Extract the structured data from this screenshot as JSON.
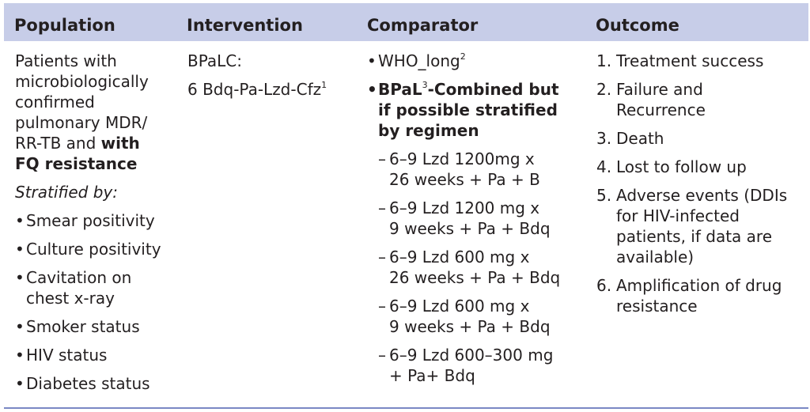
{
  "headers": {
    "population": "Population",
    "intervention": "Intervention",
    "comparator": "Comparator",
    "outcome": "Outcome"
  },
  "population": {
    "line1": "Patients with",
    "line2": "microbiologically",
    "line3": "confirmed",
    "line4": "pulmonary MDR/",
    "line5_plain": "RR-TB and ",
    "line5_bold": "with",
    "line6_bold": "FQ resistance",
    "stratified_label": "Stratified by:",
    "items": [
      "Smear positivity",
      "Culture positivity",
      "Cavitation on",
      "chest x-ray",
      "Smoker status",
      "HIV status",
      "Diabetes status"
    ]
  },
  "intervention": {
    "name": "BPaLC:",
    "regimen": "6 Bdq-Pa-Lzd-Cfz",
    "footnote": "1"
  },
  "comparator": {
    "who_label": "WHO_long",
    "who_footnote": "2",
    "bpal_bold": "BPaL",
    "bpal_footnote": "3",
    "bpal_rest1": "-Combined but",
    "bpal_rest2": "if possible stratified",
    "bpal_rest3": "by regimen",
    "dash_symbol": "–",
    "regimens": [
      {
        "line1": "6–9 Lzd 1200mg x",
        "line2": "26 weeks + Pa + B"
      },
      {
        "line1": "6–9 Lzd 1200 mg x",
        "line2": "9 weeks + Pa + Bdq"
      },
      {
        "line1": "6–9 Lzd 600 mg x",
        "line2": "26 weeks + Pa + Bdq"
      },
      {
        "line1": "6–9 Lzd 600 mg x",
        "line2": "9 weeks + Pa + Bdq"
      },
      {
        "line1": "6–9 Lzd 600–300 mg",
        "line2": "+ Pa+ Bdq"
      }
    ]
  },
  "outcome": {
    "items": [
      {
        "num": "1.",
        "lines": [
          "Treatment success"
        ]
      },
      {
        "num": "2.",
        "lines": [
          "Failure and",
          "Recurrence"
        ]
      },
      {
        "num": "3.",
        "lines": [
          "Death"
        ]
      },
      {
        "num": "4.",
        "lines": [
          "Lost to follow up"
        ]
      },
      {
        "num": "5.",
        "lines": [
          "Adverse events (DDIs",
          "for HIV-infected",
          "patients, if data are",
          "available)"
        ]
      },
      {
        "num": "6.",
        "lines": [
          "Amplification of drug",
          "resistance"
        ]
      }
    ]
  },
  "colors": {
    "header_bg": "#c7cde8",
    "rule": "#7a88c4",
    "text": "#231f20"
  }
}
